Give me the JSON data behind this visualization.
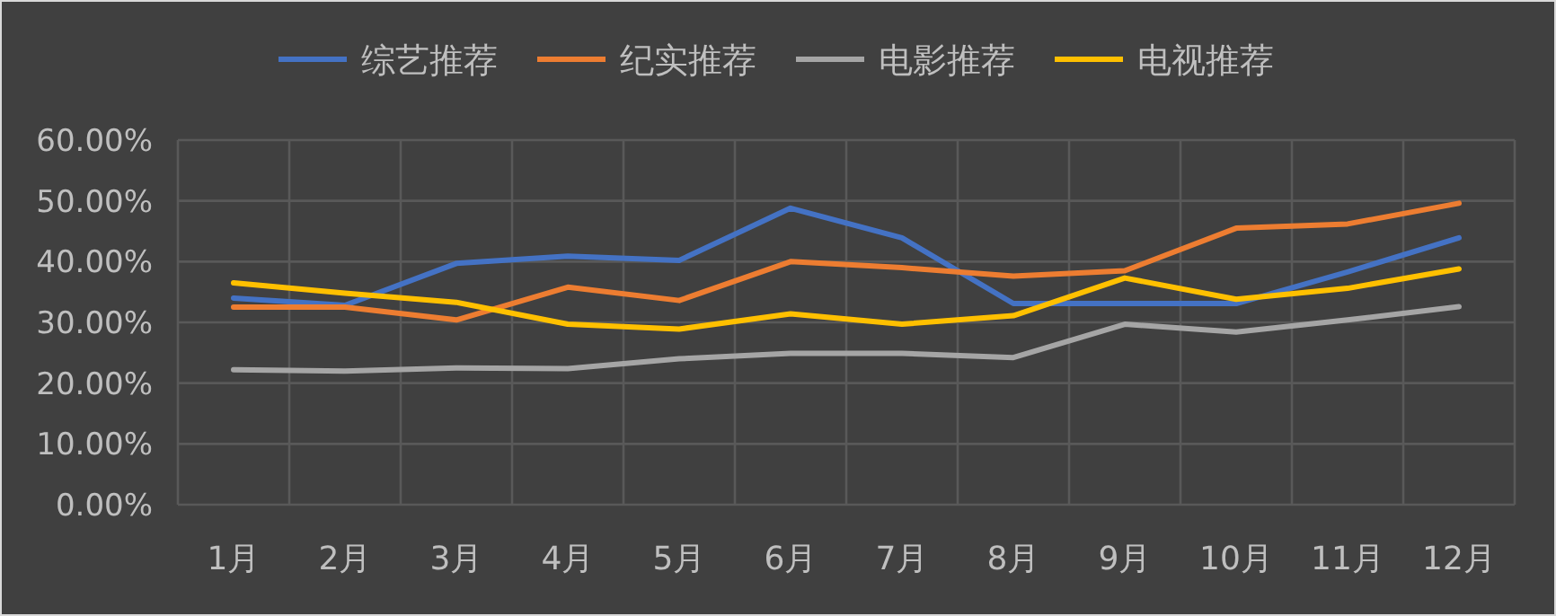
{
  "chart_data": {
    "type": "line",
    "categories": [
      "1月",
      "2月",
      "3月",
      "4月",
      "5月",
      "6月",
      "7月",
      "8月",
      "9月",
      "10月",
      "11月",
      "12月"
    ],
    "series": [
      {
        "name": "综艺推荐",
        "color": "#4472c4",
        "values": [
          34.0,
          32.8,
          39.7,
          40.9,
          40.2,
          48.8,
          43.9,
          33.1,
          33.1,
          33.1,
          38.3,
          43.9
        ]
      },
      {
        "name": "纪实推荐",
        "color": "#ed7d31",
        "values": [
          32.5,
          32.5,
          30.4,
          35.8,
          33.6,
          40.0,
          39.0,
          37.6,
          38.5,
          45.5,
          46.2,
          49.6
        ]
      },
      {
        "name": "电影推荐",
        "color": "#a5a5a5",
        "values": [
          22.2,
          22.0,
          22.5,
          22.4,
          24.0,
          24.9,
          24.9,
          24.2,
          29.7,
          28.4,
          30.4,
          32.6
        ]
      },
      {
        "name": "电视推荐",
        "color": "#ffc000",
        "values": [
          36.5,
          34.8,
          33.3,
          29.7,
          28.9,
          31.4,
          29.7,
          31.1,
          37.3,
          33.8,
          35.6,
          38.8
        ]
      }
    ],
    "ylim": [
      0,
      60
    ],
    "yticks": [
      {
        "value": 0,
        "label": "0.00%"
      },
      {
        "value": 10,
        "label": "10.00%"
      },
      {
        "value": 20,
        "label": "20.00%"
      },
      {
        "value": 30,
        "label": "30.00%"
      },
      {
        "value": 40,
        "label": "40.00%"
      },
      {
        "value": 50,
        "label": "50.00%"
      },
      {
        "value": 60,
        "label": "60.00%"
      }
    ],
    "grid": true,
    "legend": "top",
    "line_style": "solid"
  }
}
